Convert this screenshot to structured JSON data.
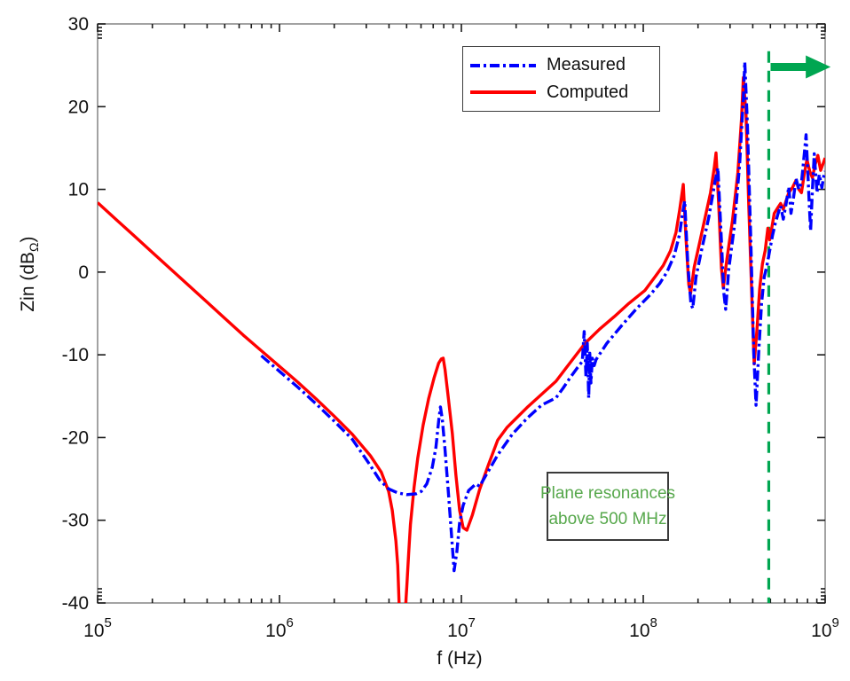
{
  "chart_data": {
    "type": "line",
    "title": "",
    "xlabel": "f (Hz)",
    "ylabel_parts": {
      "pre": "Zin (dB",
      "sub": "Ω",
      "post": ")"
    },
    "x_scale": "log",
    "xlog_range": [
      5,
      9
    ],
    "x_tick_exponents": [
      5,
      6,
      7,
      8,
      9
    ],
    "x_tick_base": "10",
    "ylim": [
      -40,
      30
    ],
    "y_ticks": [
      30,
      20,
      10,
      0,
      -10,
      -20,
      -30,
      -40
    ],
    "grid": false,
    "frame_color": "#8c8c8c",
    "tick_color": "#1a1a1a",
    "legend": {
      "position": "top-right-inside",
      "items": [
        {
          "label": "Measured",
          "color": "#0000ff",
          "style": "dash-dot"
        },
        {
          "label": "Computed",
          "color": "#ff0000",
          "style": "solid"
        }
      ]
    },
    "series": [
      {
        "name": "Computed",
        "color": "#ff0000",
        "style": "solid",
        "points": [
          [
            5.0,
            8.4
          ],
          [
            5.1,
            6.4
          ],
          [
            5.2,
            4.4
          ],
          [
            5.3,
            2.4
          ],
          [
            5.4,
            0.4
          ],
          [
            5.5,
            -1.6
          ],
          [
            5.6,
            -3.6
          ],
          [
            5.7,
            -5.6
          ],
          [
            5.8,
            -7.6
          ],
          [
            5.9,
            -9.5
          ],
          [
            6.0,
            -11.4
          ],
          [
            6.1,
            -13.3
          ],
          [
            6.2,
            -15.3
          ],
          [
            6.3,
            -17.4
          ],
          [
            6.4,
            -19.6
          ],
          [
            6.5,
            -22.2
          ],
          [
            6.56,
            -24.2
          ],
          [
            6.6,
            -26.5
          ],
          [
            6.62,
            -28.8
          ],
          [
            6.64,
            -32.5
          ],
          [
            6.65,
            -35.5
          ],
          [
            6.66,
            -41.5
          ],
          [
            6.69,
            -41.5
          ],
          [
            6.7,
            -38.0
          ],
          [
            6.71,
            -34.0
          ],
          [
            6.72,
            -30.5
          ],
          [
            6.74,
            -26.0
          ],
          [
            6.76,
            -22.5
          ],
          [
            6.79,
            -18.5
          ],
          [
            6.82,
            -15.3
          ],
          [
            6.85,
            -12.8
          ],
          [
            6.875,
            -11.0
          ],
          [
            6.89,
            -10.5
          ],
          [
            6.9,
            -10.4
          ],
          [
            6.91,
            -11.8
          ],
          [
            6.93,
            -15.5
          ],
          [
            6.95,
            -19.5
          ],
          [
            6.97,
            -24.5
          ],
          [
            6.99,
            -28.8
          ],
          [
            7.01,
            -30.9
          ],
          [
            7.03,
            -31.2
          ],
          [
            7.06,
            -29.4
          ],
          [
            7.1,
            -26.3
          ],
          [
            7.15,
            -23.2
          ],
          [
            7.2,
            -20.3
          ],
          [
            7.25,
            -18.8
          ],
          [
            7.3,
            -17.7
          ],
          [
            7.36,
            -16.4
          ],
          [
            7.44,
            -14.8
          ],
          [
            7.52,
            -13.2
          ],
          [
            7.6,
            -10.9
          ],
          [
            7.68,
            -8.6
          ],
          [
            7.76,
            -6.9
          ],
          [
            7.84,
            -5.4
          ],
          [
            7.92,
            -3.8
          ],
          [
            8.01,
            -2.2
          ],
          [
            8.07,
            -0.4
          ],
          [
            8.11,
            0.8
          ],
          [
            8.15,
            2.6
          ],
          [
            8.18,
            4.8
          ],
          [
            8.2,
            7.5
          ],
          [
            8.22,
            10.6
          ],
          [
            8.235,
            4.0
          ],
          [
            8.25,
            -1.5
          ],
          [
            8.26,
            -2.6
          ],
          [
            8.28,
            0.6
          ],
          [
            8.31,
            3.6
          ],
          [
            8.34,
            6.6
          ],
          [
            8.37,
            9.6
          ],
          [
            8.39,
            12.6
          ],
          [
            8.4,
            14.4
          ],
          [
            8.415,
            8.0
          ],
          [
            8.43,
            0.5
          ],
          [
            8.44,
            -1.9
          ],
          [
            8.46,
            1.6
          ],
          [
            8.49,
            6.2
          ],
          [
            8.52,
            12.0
          ],
          [
            8.54,
            18.5
          ],
          [
            8.55,
            23.5
          ],
          [
            8.565,
            19.0
          ],
          [
            8.58,
            8.0
          ],
          [
            8.6,
            -5.0
          ],
          [
            8.61,
            -11.1
          ],
          [
            8.625,
            -7.0
          ],
          [
            8.64,
            -2.0
          ],
          [
            8.655,
            1.0
          ],
          [
            8.67,
            2.6
          ],
          [
            8.685,
            5.3
          ],
          [
            8.695,
            3.9
          ],
          [
            8.71,
            5.8
          ],
          [
            8.72,
            7.1
          ],
          [
            8.74,
            7.8
          ],
          [
            8.755,
            8.3
          ],
          [
            8.77,
            7.6
          ],
          [
            8.8,
            9.6
          ],
          [
            8.82,
            10.2
          ],
          [
            8.84,
            11.1
          ],
          [
            8.855,
            10.0
          ],
          [
            8.87,
            9.6
          ],
          [
            8.885,
            11.8
          ],
          [
            8.9,
            13.6
          ],
          [
            8.915,
            12.2
          ],
          [
            8.93,
            11.4
          ],
          [
            8.945,
            13.0
          ],
          [
            8.96,
            14.1
          ],
          [
            8.975,
            12.3
          ],
          [
            8.99,
            13.2
          ],
          [
            9.0,
            13.8
          ]
        ]
      },
      {
        "name": "Measured",
        "color": "#0000ff",
        "style": "dash-dot",
        "points": [
          [
            5.9,
            -10.1
          ],
          [
            6.0,
            -12.0
          ],
          [
            6.1,
            -13.9
          ],
          [
            6.2,
            -15.9
          ],
          [
            6.3,
            -18.0
          ],
          [
            6.4,
            -20.2
          ],
          [
            6.45,
            -21.8
          ],
          [
            6.5,
            -23.4
          ],
          [
            6.55,
            -25.1
          ],
          [
            6.6,
            -26.2
          ],
          [
            6.65,
            -26.7
          ],
          [
            6.7,
            -26.9
          ],
          [
            6.75,
            -26.8
          ],
          [
            6.78,
            -26.5
          ],
          [
            6.81,
            -25.6
          ],
          [
            6.84,
            -23.6
          ],
          [
            6.86,
            -21.2
          ],
          [
            6.875,
            -18.0
          ],
          [
            6.885,
            -16.3
          ],
          [
            6.895,
            -17.8
          ],
          [
            6.91,
            -21.5
          ],
          [
            6.93,
            -27.0
          ],
          [
            6.945,
            -31.5
          ],
          [
            6.96,
            -36.1
          ],
          [
            6.975,
            -33.8
          ],
          [
            6.99,
            -30.3
          ],
          [
            7.01,
            -28.2
          ],
          [
            7.04,
            -26.4
          ],
          [
            7.08,
            -25.6
          ],
          [
            7.1,
            -25.9
          ],
          [
            7.15,
            -24.0
          ],
          [
            7.2,
            -22.1
          ],
          [
            7.28,
            -19.6
          ],
          [
            7.36,
            -17.7
          ],
          [
            7.44,
            -16.1
          ],
          [
            7.52,
            -15.2
          ],
          [
            7.56,
            -14.0
          ],
          [
            7.6,
            -12.7
          ],
          [
            7.64,
            -11.5
          ],
          [
            7.665,
            -10.8
          ],
          [
            7.675,
            -7.2
          ],
          [
            7.685,
            -12.6
          ],
          [
            7.692,
            -8.6
          ],
          [
            7.7,
            -15.2
          ],
          [
            7.706,
            -9.8
          ],
          [
            7.712,
            -13.4
          ],
          [
            7.72,
            -10.4
          ],
          [
            7.73,
            -11.3
          ],
          [
            7.74,
            -10.6
          ],
          [
            7.8,
            -8.6
          ],
          [
            7.88,
            -6.5
          ],
          [
            7.96,
            -4.5
          ],
          [
            8.04,
            -2.7
          ],
          [
            8.09,
            -1.4
          ],
          [
            8.13,
            0.0
          ],
          [
            8.17,
            2.0
          ],
          [
            8.2,
            4.6
          ],
          [
            8.215,
            7.0
          ],
          [
            8.228,
            8.6
          ],
          [
            8.245,
            1.0
          ],
          [
            8.262,
            -3.8
          ],
          [
            8.272,
            -4.4
          ],
          [
            8.29,
            -0.6
          ],
          [
            8.32,
            2.6
          ],
          [
            8.36,
            6.6
          ],
          [
            8.395,
            11.0
          ],
          [
            8.41,
            12.6
          ],
          [
            8.425,
            6.0
          ],
          [
            8.443,
            -2.5
          ],
          [
            8.453,
            -4.5
          ],
          [
            8.47,
            0.4
          ],
          [
            8.5,
            5.4
          ],
          [
            8.53,
            13.0
          ],
          [
            8.55,
            21.0
          ],
          [
            8.558,
            25.4
          ],
          [
            8.572,
            18.0
          ],
          [
            8.59,
            5.0
          ],
          [
            8.608,
            -10.0
          ],
          [
            8.62,
            -16.1
          ],
          [
            8.635,
            -9.5
          ],
          [
            8.65,
            -3.8
          ],
          [
            8.665,
            -0.6
          ],
          [
            8.68,
            0.8
          ],
          [
            8.695,
            2.6
          ],
          [
            8.71,
            4.4
          ],
          [
            8.725,
            5.8
          ],
          [
            8.74,
            7.0
          ],
          [
            8.755,
            8.0
          ],
          [
            8.77,
            6.4
          ],
          [
            8.785,
            8.2
          ],
          [
            8.8,
            10.3
          ],
          [
            8.812,
            7.1
          ],
          [
            8.825,
            8.8
          ],
          [
            8.84,
            11.3
          ],
          [
            8.855,
            10.0
          ],
          [
            8.87,
            10.8
          ],
          [
            8.885,
            14.2
          ],
          [
            8.895,
            16.6
          ],
          [
            8.905,
            12.0
          ],
          [
            8.912,
            8.4
          ],
          [
            8.92,
            5.0
          ],
          [
            8.93,
            9.8
          ],
          [
            8.94,
            14.3
          ],
          [
            8.955,
            9.6
          ],
          [
            8.968,
            11.8
          ],
          [
            8.982,
            10.2
          ],
          [
            8.992,
            11.6
          ],
          [
            9.0,
            12.2
          ]
        ]
      }
    ],
    "annotations": {
      "vline": {
        "x_log": 8.69,
        "db_top": 26.7,
        "db_bottom": -40,
        "color": "#00a651",
        "style": "dashed",
        "meaning": "500 MHz marker"
      },
      "arrow": {
        "at_db": 24.8,
        "from_log": 8.7,
        "to_log": 9.03,
        "color": "#00a651",
        "direction": "right"
      },
      "textbox": {
        "lines": [
          "Plane resonances",
          "above 500 MHz"
        ],
        "text_color": "#57a84c",
        "border_color": "#3a3a3a",
        "background": "#ffffff"
      }
    }
  }
}
